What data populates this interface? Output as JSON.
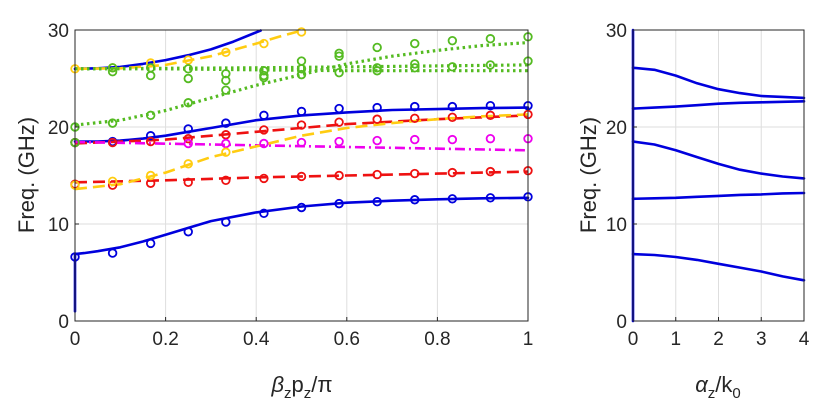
{
  "chart_data": [
    {
      "type": "line",
      "title": "",
      "xlabel": "βzpz/π",
      "xlabel_parts": {
        "beta": "β",
        "sub_z1": "z",
        "p": "p",
        "sub_z2": "z",
        "rest": "/π"
      },
      "ylabel": "Freq. (GHz)",
      "xlim": [
        0,
        1
      ],
      "ylim": [
        0,
        30
      ],
      "xticks": [
        0,
        0.2,
        0.4,
        0.6,
        0.8,
        1
      ],
      "xtick_labels": [
        "0",
        "0.2",
        "0.4",
        "0.6",
        "0.8",
        "1"
      ],
      "yticks": [
        0,
        10,
        20,
        30
      ],
      "ytick_labels": [
        "0",
        "10",
        "20",
        "30"
      ],
      "grid": true,
      "series": [
        {
          "name": "blue-mode-1",
          "color": "#0000dd",
          "style": "solid",
          "x": [
            0,
            0,
            0.02,
            0.05,
            0.1,
            0.15,
            0.2,
            0.25,
            0.3,
            0.4,
            0.5,
            0.6,
            0.7,
            0.8,
            0.9,
            1.0
          ],
          "y": [
            1,
            6.9,
            7.0,
            7.2,
            7.6,
            8.2,
            8.9,
            9.6,
            10.3,
            11.2,
            11.8,
            12.2,
            12.4,
            12.55,
            12.65,
            12.7
          ]
        },
        {
          "name": "blue-mode-2",
          "color": "#0000dd",
          "style": "solid",
          "x": [
            0,
            0.05,
            0.1,
            0.15,
            0.2,
            0.25,
            0.3,
            0.4,
            0.5,
            0.6,
            0.7,
            0.8,
            0.9,
            1.0
          ],
          "y": [
            18.5,
            18.5,
            18.6,
            18.8,
            19.1,
            19.5,
            19.9,
            20.7,
            21.2,
            21.5,
            21.75,
            21.85,
            21.95,
            22.0
          ]
        },
        {
          "name": "blue-mode-3",
          "color": "#0000dd",
          "style": "solid",
          "x": [
            0,
            0.05,
            0.1,
            0.15,
            0.2,
            0.25,
            0.3,
            0.35,
            0.41
          ],
          "y": [
            26.0,
            26.05,
            26.2,
            26.5,
            26.9,
            27.4,
            28.0,
            28.8,
            29.95
          ]
        },
        {
          "name": "red-mode-1",
          "color": "#ee1111",
          "style": "dashed",
          "x": [
            0,
            0.2,
            0.4,
            0.6,
            0.8,
            1.0
          ],
          "y": [
            14.3,
            14.5,
            14.8,
            15.0,
            15.2,
            15.4
          ]
        },
        {
          "name": "red-mode-2",
          "color": "#ee1111",
          "style": "dashed",
          "x": [
            0,
            0.2,
            0.4,
            0.6,
            0.8,
            1.0
          ],
          "y": [
            18.3,
            18.7,
            19.5,
            20.3,
            20.8,
            21.2
          ]
        },
        {
          "name": "magenta-mode",
          "color": "#ee00ee",
          "style": "dashdot",
          "x": [
            0,
            1.0
          ],
          "y": [
            18.45,
            17.6
          ]
        },
        {
          "name": "yellow-mode-1",
          "color": "#ffcc11",
          "style": "dashed",
          "x": [
            0,
            0.1,
            0.2,
            0.3,
            0.4,
            0.5,
            0.6,
            0.7,
            0.8,
            0.9,
            1.0
          ],
          "y": [
            13.6,
            14.1,
            15.3,
            16.9,
            18.0,
            19.1,
            19.9,
            20.4,
            20.8,
            21.1,
            21.3
          ]
        },
        {
          "name": "yellow-mode-2",
          "color": "#ffcc11",
          "style": "dashed",
          "x": [
            0,
            0.1,
            0.2,
            0.3,
            0.4,
            0.45,
            0.5
          ],
          "y": [
            26.0,
            26.05,
            26.4,
            27.3,
            28.6,
            29.3,
            29.95
          ]
        },
        {
          "name": "green-mode-1",
          "color": "#55bb22",
          "style": "dotted",
          "x": [
            0,
            0.1,
            0.2,
            0.3,
            0.4,
            0.5,
            0.6,
            0.7,
            0.8,
            0.9,
            1.0
          ],
          "y": [
            20.2,
            20.7,
            21.7,
            23.0,
            24.3,
            25.4,
            26.5,
            27.3,
            27.9,
            28.4,
            28.7
          ]
        },
        {
          "name": "green-mode-2",
          "color": "#55bb22",
          "style": "dotted",
          "x": [
            0,
            0.2,
            0.4,
            0.6,
            0.8,
            1.0
          ],
          "y": [
            26.0,
            26.0,
            25.9,
            25.8,
            25.8,
            25.8
          ]
        },
        {
          "name": "green-mode-3",
          "color": "#55bb22",
          "style": "dotted",
          "x": [
            0,
            0.2,
            0.4,
            0.6,
            0.8,
            1.0
          ],
          "y": [
            26.0,
            26.05,
            26.1,
            26.2,
            26.3,
            26.4
          ]
        }
      ],
      "markers": [
        {
          "name": "blue-circles",
          "color": "#0000dd",
          "points": [
            [
              0,
              6.6
            ],
            [
              0.083,
              7.0
            ],
            [
              0.167,
              8.0
            ],
            [
              0.25,
              9.2
            ],
            [
              0.333,
              10.2
            ],
            [
              0.417,
              11.1
            ],
            [
              0.5,
              11.7
            ],
            [
              0.583,
              12.1
            ],
            [
              0.667,
              12.3
            ],
            [
              0.75,
              12.5
            ],
            [
              0.833,
              12.6
            ],
            [
              0.917,
              12.7
            ],
            [
              1.0,
              12.8
            ],
            [
              0,
              18.4
            ],
            [
              0.083,
              18.5
            ],
            [
              0.167,
              19.1
            ],
            [
              0.25,
              19.8
            ],
            [
              0.333,
              20.4
            ],
            [
              0.417,
              21.2
            ],
            [
              0.5,
              21.6
            ],
            [
              0.583,
              21.9
            ],
            [
              0.667,
              22.0
            ],
            [
              0.75,
              22.1
            ],
            [
              0.833,
              22.1
            ],
            [
              0.917,
              22.2
            ],
            [
              1.0,
              22.2
            ]
          ]
        },
        {
          "name": "red-circles",
          "color": "#ee1111",
          "points": [
            [
              0,
              14.1
            ],
            [
              0.083,
              14.0
            ],
            [
              0.167,
              14.2
            ],
            [
              0.25,
              14.3
            ],
            [
              0.333,
              14.5
            ],
            [
              0.417,
              14.7
            ],
            [
              0.5,
              14.9
            ],
            [
              0.583,
              15.0
            ],
            [
              0.667,
              15.1
            ],
            [
              0.75,
              15.2
            ],
            [
              0.833,
              15.3
            ],
            [
              0.917,
              15.4
            ],
            [
              1.0,
              15.5
            ],
            [
              0,
              18.4
            ],
            [
              0.083,
              18.4
            ],
            [
              0.167,
              18.5
            ],
            [
              0.25,
              18.8
            ],
            [
              0.333,
              19.2
            ],
            [
              0.417,
              19.7
            ],
            [
              0.5,
              20.2
            ],
            [
              0.583,
              20.5
            ],
            [
              0.667,
              20.8
            ],
            [
              0.75,
              20.9
            ],
            [
              0.833,
              21.0
            ],
            [
              0.917,
              21.2
            ],
            [
              1.0,
              21.3
            ]
          ]
        },
        {
          "name": "magenta-circles",
          "color": "#ee00ee",
          "points": [
            [
              0.25,
              18.3
            ],
            [
              0.333,
              18.3
            ],
            [
              0.417,
              18.3
            ],
            [
              0.5,
              18.4
            ],
            [
              0.583,
              18.5
            ],
            [
              0.667,
              18.6
            ],
            [
              0.75,
              18.7
            ],
            [
              0.833,
              18.7
            ],
            [
              0.917,
              18.8
            ],
            [
              1.0,
              18.8
            ]
          ]
        },
        {
          "name": "yellow-circles",
          "color": "#ffcc11",
          "points": [
            [
              0,
              14.0
            ],
            [
              0.083,
              14.4
            ],
            [
              0.167,
              15.0
            ],
            [
              0.25,
              16.2
            ],
            [
              0.333,
              17.4
            ],
            [
              0,
              26.0
            ],
            [
              0.083,
              26.1
            ],
            [
              0.167,
              26.6
            ],
            [
              0.25,
              26.9
            ],
            [
              0.333,
              27.7
            ],
            [
              0.417,
              28.6
            ],
            [
              0.5,
              29.8
            ]
          ]
        },
        {
          "name": "green-circles",
          "color": "#55bb22",
          "points": [
            [
              0,
              20.0
            ],
            [
              0.083,
              20.4
            ],
            [
              0.167,
              21.2
            ],
            [
              0.25,
              22.5
            ],
            [
              0.333,
              23.8
            ],
            [
              0.417,
              25.1
            ],
            [
              0.5,
              26.0
            ],
            [
              0.583,
              27.3
            ],
            [
              0.667,
              28.2
            ],
            [
              0.75,
              28.6
            ],
            [
              0.833,
              28.9
            ],
            [
              0.917,
              29.1
            ],
            [
              1.0,
              29.3
            ],
            [
              0,
              18.4
            ],
            [
              0.083,
              25.7
            ],
            [
              0.167,
              25.3
            ],
            [
              0.25,
              25.0
            ],
            [
              0.333,
              24.8
            ],
            [
              0.417,
              25.3
            ],
            [
              0.5,
              25.4
            ],
            [
              0.583,
              25.6
            ],
            [
              0.667,
              25.8
            ],
            [
              0.75,
              26.1
            ],
            [
              0.833,
              26.2
            ],
            [
              0.917,
              26.4
            ],
            [
              1.0,
              26.8
            ],
            [
              0.083,
              26.1
            ],
            [
              0.167,
              26.1
            ],
            [
              0.25,
              26.0
            ],
            [
              0.333,
              25.5
            ],
            [
              0.417,
              25.8
            ],
            [
              0.5,
              26.8
            ],
            [
              0.583,
              27.6
            ],
            [
              0.667,
              26.1
            ],
            [
              0.75,
              26.5
            ]
          ]
        }
      ]
    },
    {
      "type": "line",
      "title": "",
      "xlabel": "αz/k0",
      "xlabel_parts": {
        "alpha": "α",
        "sub_z": "z",
        "k": "/k",
        "sub_0": "0"
      },
      "ylabel": "Freq. (GHz)",
      "xlim": [
        0,
        4
      ],
      "ylim": [
        0,
        30
      ],
      "xticks": [
        0,
        1,
        2,
        3,
        4
      ],
      "xtick_labels": [
        "0",
        "1",
        "2",
        "3",
        "4"
      ],
      "yticks": [
        0,
        10,
        20,
        30
      ],
      "ytick_labels": [
        "0",
        "10",
        "20",
        "30"
      ],
      "grid": true,
      "series": [
        {
          "name": "alpha-vertical",
          "color": "#0000dd",
          "style": "solid",
          "x": [
            0,
            0
          ],
          "y": [
            0,
            30
          ]
        },
        {
          "name": "alpha-mode-1",
          "color": "#0000dd",
          "style": "solid",
          "x": [
            0,
            0.5,
            1,
            1.5,
            2,
            2.5,
            3,
            3.5,
            4
          ],
          "y": [
            6.9,
            6.8,
            6.6,
            6.3,
            5.9,
            5.5,
            5.1,
            4.6,
            4.2
          ]
        },
        {
          "name": "alpha-mode-2",
          "color": "#0000dd",
          "style": "solid",
          "x": [
            0,
            0.5,
            1,
            1.5,
            2,
            2.5,
            3,
            3.5,
            4
          ],
          "y": [
            12.6,
            12.65,
            12.7,
            12.8,
            12.9,
            13.0,
            13.05,
            13.15,
            13.2
          ]
        },
        {
          "name": "alpha-mode-3",
          "color": "#0000dd",
          "style": "solid",
          "x": [
            0,
            0.5,
            1,
            1.5,
            2,
            2.5,
            3,
            3.5,
            4
          ],
          "y": [
            18.5,
            18.2,
            17.6,
            16.9,
            16.2,
            15.6,
            15.2,
            14.9,
            14.7
          ]
        },
        {
          "name": "alpha-mode-4",
          "color": "#0000dd",
          "style": "solid",
          "x": [
            0,
            0.5,
            1,
            1.5,
            2,
            2.5,
            3,
            3.5,
            4
          ],
          "y": [
            21.9,
            22.0,
            22.1,
            22.25,
            22.4,
            22.5,
            22.55,
            22.6,
            22.65
          ]
        },
        {
          "name": "alpha-mode-5",
          "color": "#0000dd",
          "style": "solid",
          "x": [
            0,
            0.5,
            1,
            1.5,
            2,
            2.5,
            3,
            3.5,
            4
          ],
          "y": [
            26.1,
            25.9,
            25.3,
            24.5,
            23.9,
            23.5,
            23.2,
            23.1,
            23.0
          ]
        }
      ],
      "markers": []
    }
  ]
}
